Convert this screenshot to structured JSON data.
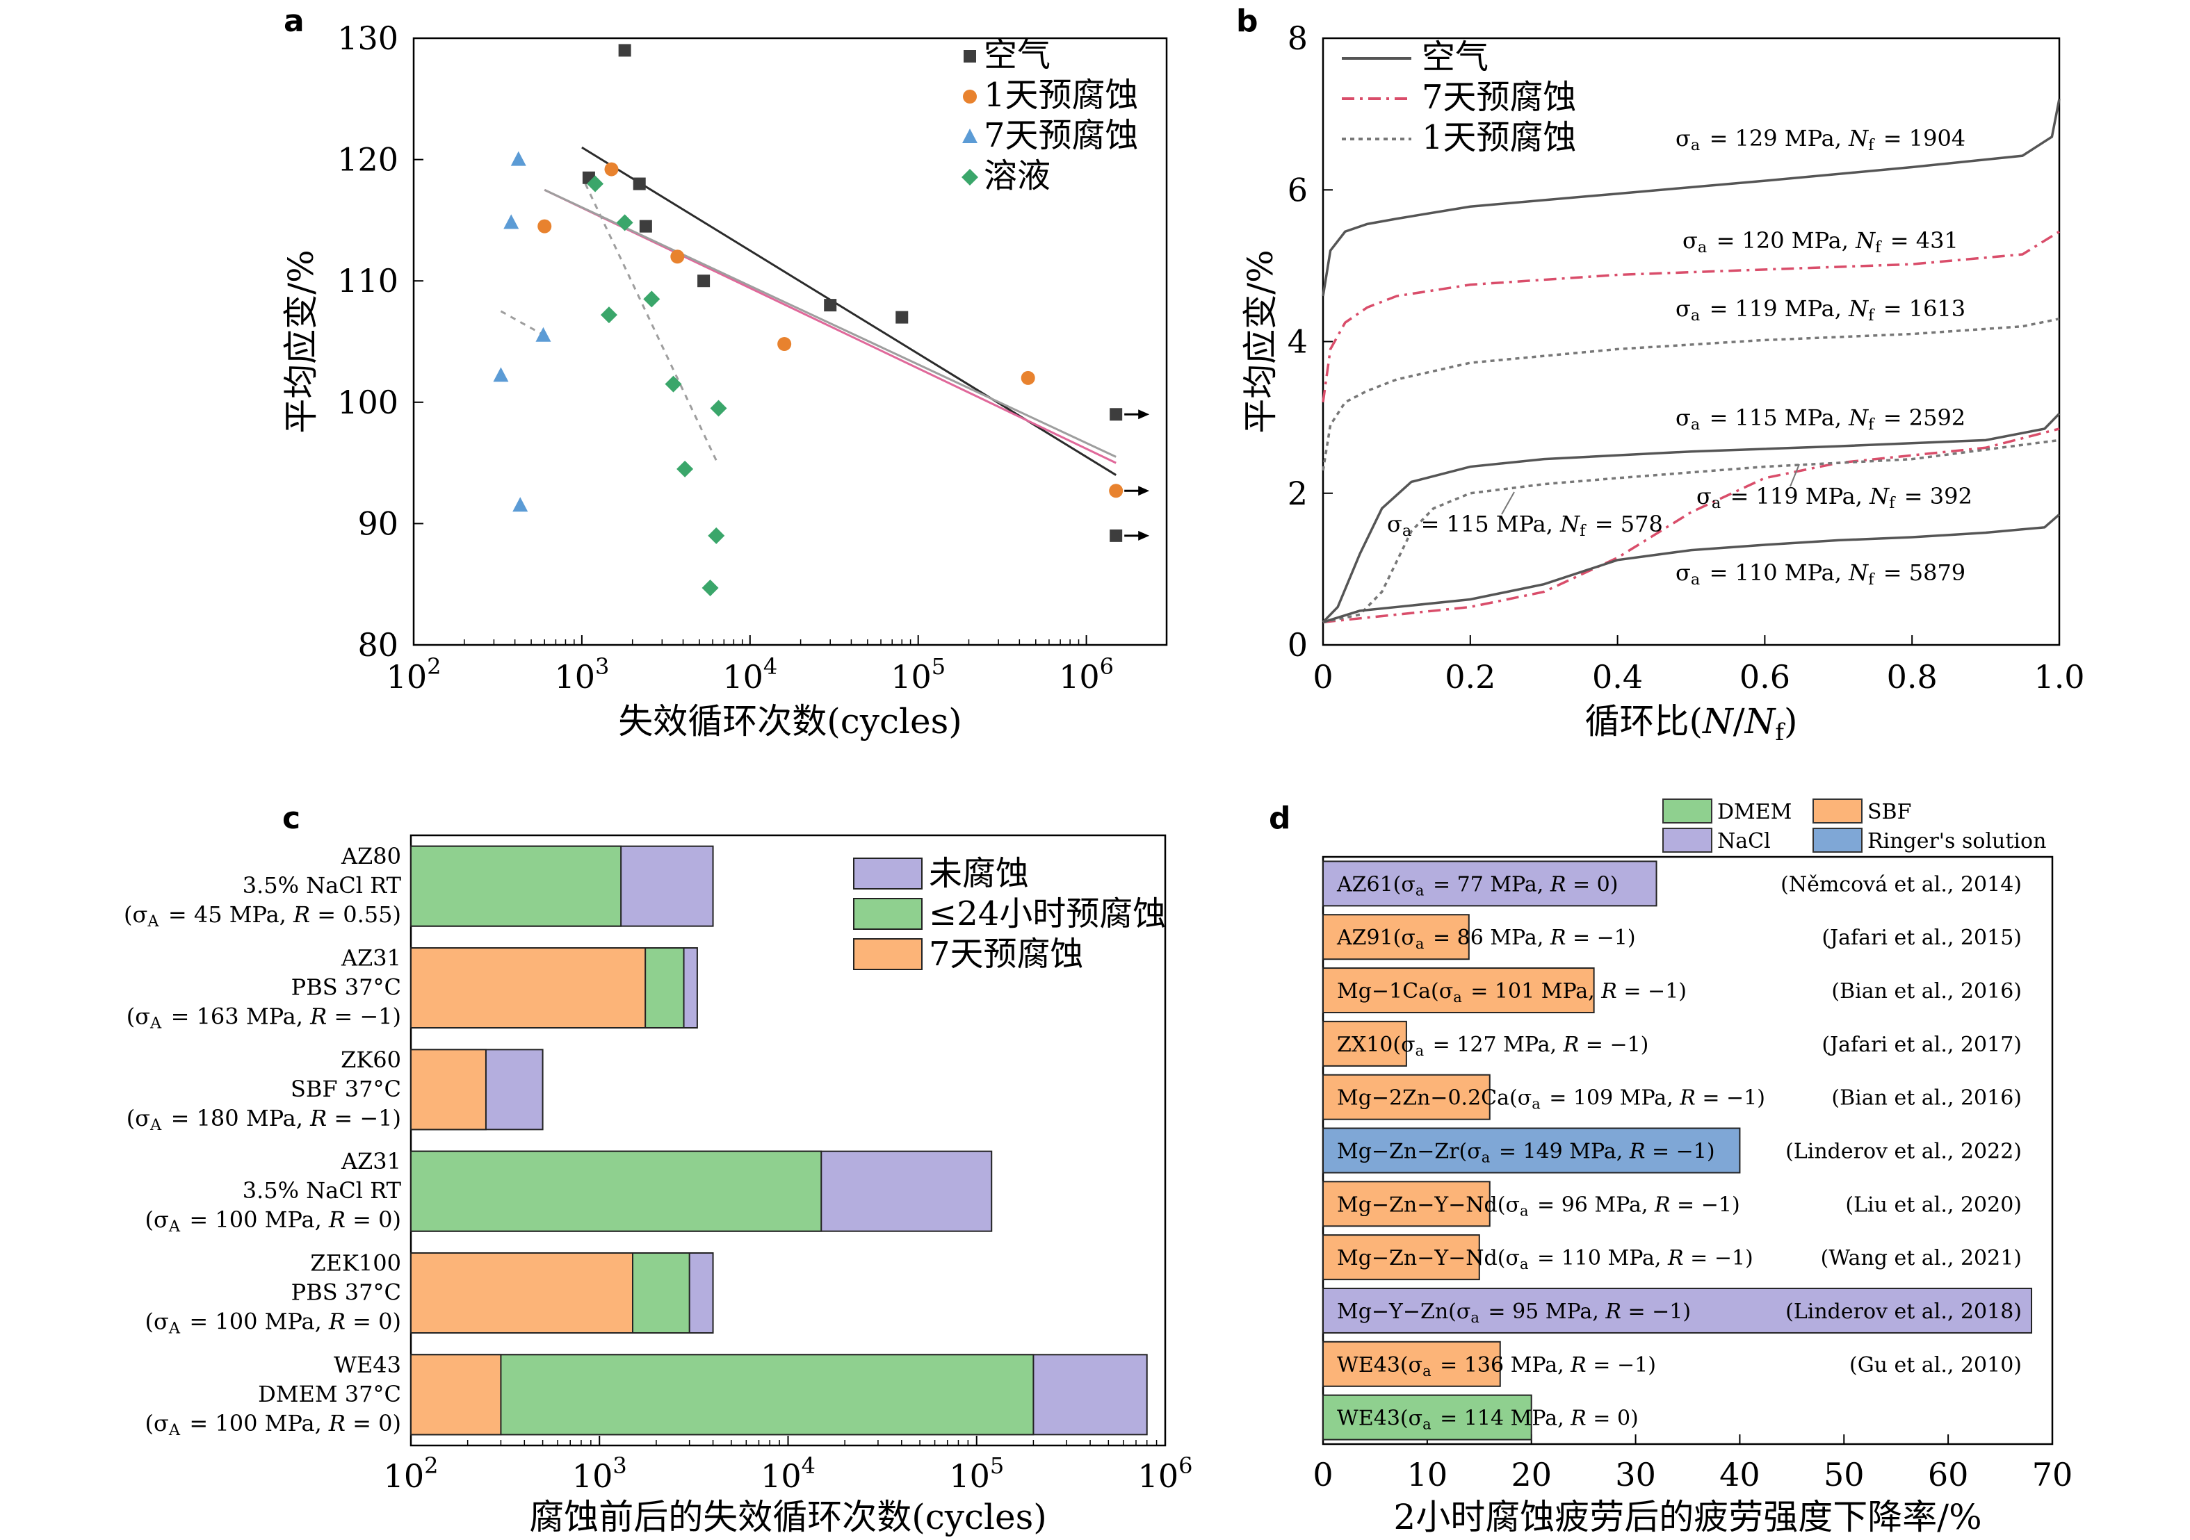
{
  "panels": {
    "a": "a",
    "b": "b",
    "c": "c",
    "d": "d"
  },
  "chart_data": [
    {
      "panel": "a",
      "type": "scatter",
      "xscale": "log",
      "xlabel": "失效循环次数(cycles)",
      "ylabel": "平均应变/%",
      "xlim": [
        100,
        3000000
      ],
      "ylim": [
        80,
        130
      ],
      "xticks": [
        100,
        1000,
        10000,
        100000,
        1000000
      ],
      "xtick_labels": [
        [
          "10",
          "2"
        ],
        [
          "10",
          "3"
        ],
        [
          "10",
          "4"
        ],
        [
          "10",
          "5"
        ],
        [
          "10",
          "6"
        ]
      ],
      "yticks": [
        80,
        90,
        100,
        110,
        120,
        130
      ],
      "legend_position": "top-right",
      "series": [
        {
          "name": "空气",
          "marker": "square",
          "color": "#3d3d3d",
          "points": [
            [
              1800,
              129
            ],
            [
              1100,
              118.5
            ],
            [
              2200,
              118
            ],
            [
              2400,
              114.5
            ],
            [
              5300,
              110
            ],
            [
              30000,
              108
            ],
            [
              80000,
              107
            ]
          ],
          "runouts": [
            [
              1500000,
              99
            ],
            [
              1500000,
              89
            ]
          ]
        },
        {
          "name": "1天预腐蚀",
          "marker": "circle",
          "color": "#e8822e",
          "points": [
            [
              600,
              114.5
            ],
            [
              1500,
              119.2
            ],
            [
              3700,
              112
            ],
            [
              16000,
              104.8
            ],
            [
              450000,
              102
            ]
          ],
          "runouts": [
            [
              1500000,
              92.7
            ]
          ]
        },
        {
          "name": "7天预腐蚀",
          "marker": "triangle",
          "color": "#5b9bd5",
          "points": [
            [
              420,
              120
            ],
            [
              380,
              114.8
            ],
            [
              590,
              105.5
            ],
            [
              330,
              102.2
            ],
            [
              430,
              91.5
            ]
          ],
          "runouts": []
        },
        {
          "name": "溶液",
          "marker": "diamond",
          "color": "#3aa66a",
          "points": [
            [
              1200,
              118
            ],
            [
              1800,
              114.8
            ],
            [
              1450,
              107.2
            ],
            [
              2600,
              108.5
            ],
            [
              3500,
              101.5
            ],
            [
              6500,
              99.5
            ],
            [
              4100,
              94.5
            ],
            [
              6300,
              89
            ],
            [
              5800,
              84.7
            ]
          ],
          "runouts": []
        }
      ],
      "fits": [
        {
          "color": "#2b2b2b",
          "dash": "",
          "from": [
            1000,
            121
          ],
          "to": [
            1500000,
            94
          ]
        },
        {
          "color": "#e0689a",
          "dash": "",
          "from": [
            600,
            117.5
          ],
          "to": [
            1500000,
            95
          ]
        },
        {
          "color": "#9e9e9e",
          "dash": "",
          "from": [
            600,
            117.5
          ],
          "to": [
            1500000,
            95.5
          ]
        },
        {
          "color": "#9e9e9e",
          "dash": "8,8",
          "from": [
            1050,
            118
          ],
          "to": [
            6400,
            95
          ]
        },
        {
          "color": "#9e9e9e",
          "dash": "8,8",
          "from": [
            330,
            107.5
          ],
          "to": [
            600,
            105.5
          ]
        }
      ]
    },
    {
      "panel": "b",
      "type": "line",
      "xlabel": "循环比(N/N_f)",
      "xlabel_parts": [
        "循环比(",
        "N",
        "/",
        "N",
        "f",
        ")"
      ],
      "ylabel": "平均应变/%",
      "xlim": [
        0,
        1.0
      ],
      "ylim": [
        0,
        8
      ],
      "xticks": [
        0,
        0.2,
        0.4,
        0.6,
        0.8,
        1.0
      ],
      "xtick_labels": [
        "0",
        "0.2",
        "0.4",
        "0.6",
        "0.8",
        "1.0"
      ],
      "yticks": [
        0,
        2,
        4,
        6,
        8
      ],
      "legend_position": "top-left",
      "legend": [
        {
          "name": "空气",
          "color": "#555555",
          "dash": ""
        },
        {
          "name": "7天预腐蚀",
          "color": "#d94d6a",
          "dash": "18,8,4,8"
        },
        {
          "name": "1天预腐蚀",
          "color": "#777777",
          "dash": "6,6"
        }
      ],
      "series": [
        {
          "style": "air",
          "label": "σa = 129 MPa, Nf = 1904",
          "x": [
            0,
            0.01,
            0.03,
            0.06,
            0.1,
            0.2,
            0.4,
            0.6,
            0.8,
            0.95,
            0.99,
            1.0
          ],
          "y": [
            4.6,
            5.2,
            5.45,
            5.55,
            5.62,
            5.78,
            5.95,
            6.12,
            6.3,
            6.45,
            6.7,
            7.2
          ]
        },
        {
          "style": "7d",
          "label": "σa = 120 MPa, Nf = 431",
          "x": [
            0,
            0.01,
            0.03,
            0.06,
            0.1,
            0.2,
            0.4,
            0.6,
            0.8,
            0.95,
            1.0
          ],
          "y": [
            3.2,
            3.9,
            4.25,
            4.45,
            4.6,
            4.75,
            4.88,
            4.95,
            5.02,
            5.15,
            5.45
          ]
        },
        {
          "style": "1d",
          "label": "σa = 119 MPa, Nf = 1613",
          "x": [
            0,
            0.01,
            0.03,
            0.06,
            0.1,
            0.2,
            0.4,
            0.6,
            0.8,
            0.95,
            1.0
          ],
          "y": [
            2.3,
            2.9,
            3.2,
            3.35,
            3.5,
            3.72,
            3.9,
            4.02,
            4.1,
            4.2,
            4.3
          ]
        },
        {
          "style": "air",
          "label": "σa = 115 MPa, Nf = 2592",
          "x": [
            0,
            0.02,
            0.05,
            0.08,
            0.12,
            0.2,
            0.3,
            0.5,
            0.7,
            0.9,
            0.98,
            1.0
          ],
          "y": [
            0.3,
            0.5,
            1.2,
            1.8,
            2.15,
            2.35,
            2.45,
            2.55,
            2.62,
            2.7,
            2.85,
            3.05
          ]
        },
        {
          "style": "7d",
          "label": "σa = 119 MPa, Nf = 392",
          "x": [
            0,
            0.05,
            0.1,
            0.2,
            0.3,
            0.4,
            0.5,
            0.6,
            0.7,
            0.8,
            0.9,
            1.0
          ],
          "y": [
            0.3,
            0.35,
            0.4,
            0.5,
            0.7,
            1.15,
            1.75,
            2.2,
            2.4,
            2.5,
            2.6,
            2.85
          ]
        },
        {
          "style": "1d",
          "label": "σa = 115 MPa, Nf = 578",
          "x": [
            0,
            0.05,
            0.08,
            0.1,
            0.12,
            0.15,
            0.2,
            0.3,
            0.4,
            0.6,
            0.8,
            1.0
          ],
          "y": [
            0.3,
            0.4,
            0.7,
            1.1,
            1.5,
            1.8,
            2.0,
            2.12,
            2.2,
            2.35,
            2.45,
            2.7
          ]
        },
        {
          "style": "air",
          "label": "σa = 110 MPa, Nf = 5879",
          "x": [
            0,
            0.05,
            0.1,
            0.2,
            0.3,
            0.4,
            0.5,
            0.6,
            0.7,
            0.8,
            0.9,
            0.98,
            1.0
          ],
          "y": [
            0.3,
            0.45,
            0.5,
            0.6,
            0.8,
            1.12,
            1.25,
            1.32,
            1.38,
            1.42,
            1.48,
            1.55,
            1.72
          ]
        }
      ],
      "annotations": [
        {
          "text": "σa = 129 MPa, Nf = 1904"
        },
        {
          "text": "σa = 120 MPa, Nf = 431"
        },
        {
          "text": "σa = 119 MPa, Nf = 1613"
        },
        {
          "text": "σa = 115 MPa, Nf = 2592"
        },
        {
          "text": "σa = 119 MPa, Nf = 392"
        },
        {
          "text": "σa = 115 MPa, Nf = 578"
        },
        {
          "text": "σa = 110 MPa, Nf = 5879"
        }
      ]
    },
    {
      "panel": "c",
      "type": "bar",
      "orientation": "horizontal",
      "xscale": "log",
      "xlabel": "腐蚀前后的失效循环次数(cycles)",
      "xlim": [
        100,
        1000000
      ],
      "xticks": [
        100,
        1000,
        10000,
        100000,
        1000000
      ],
      "xtick_labels": [
        [
          "10",
          "2"
        ],
        [
          "10",
          "3"
        ],
        [
          "10",
          "4"
        ],
        [
          "10",
          "5"
        ],
        [
          "10",
          "6"
        ]
      ],
      "legend_position": "top-right",
      "legend": [
        {
          "name": "未腐蚀",
          "color": "#b4aede"
        },
        {
          "name": "≤24小时预腐蚀",
          "color": "#8fd08f"
        },
        {
          "name": "7天预腐蚀",
          "color": "#fcb478"
        }
      ],
      "categories": [
        {
          "lines": [
            "AZ80",
            "3.5% NaCl RT",
            "(σA = 45 MPa, R = 0.55)"
          ],
          "uncorroded": 4000,
          "short": 1300,
          "seven_day": null
        },
        {
          "lines": [
            "AZ31",
            "PBS 37°C",
            "(σA = 163 MPa, R = −1)"
          ],
          "uncorroded": 3300,
          "short": 2800,
          "seven_day": 1750
        },
        {
          "lines": [
            "ZK60",
            "SBF 37°C",
            "(σA = 180 MPa, R = −1)"
          ],
          "uncorroded": 500,
          "short": null,
          "seven_day": 250
        },
        {
          "lines": [
            "AZ31",
            "3.5% NaCl RT",
            "(σA = 100 MPa, R = 0)"
          ],
          "uncorroded": 120000,
          "short": 15000,
          "seven_day": null
        },
        {
          "lines": [
            "ZEK100",
            "PBS 37°C",
            "(σA = 100 MPa, R = 0)"
          ],
          "uncorroded": 4000,
          "short": 3000,
          "seven_day": 1500
        },
        {
          "lines": [
            "WE43",
            "DMEM 37°C",
            "(σA = 100 MPa, R = 0)"
          ],
          "uncorroded": 800000,
          "short": 200000,
          "seven_day": 300
        }
      ]
    },
    {
      "panel": "d",
      "type": "bar",
      "orientation": "horizontal",
      "xlabel": "2小时腐蚀疲劳后的疲劳强度下降率/%",
      "xlim": [
        0,
        70
      ],
      "xticks": [
        0,
        10,
        20,
        30,
        40,
        50,
        60,
        70
      ],
      "legend_position": "top",
      "legend": [
        {
          "name": "DMEM",
          "color": "#8fd08f"
        },
        {
          "name": "SBF",
          "color": "#fcb478"
        },
        {
          "name": "NaCl",
          "color": "#b4aede"
        },
        {
          "name": "Ringer's solution",
          "color": "#7fa7d6"
        }
      ],
      "bars": [
        {
          "label": "AZ61(σa = 77 MPa, R = 0)",
          "ref": "(Němcová et al., 2014)",
          "value": 32,
          "medium": "NaCl"
        },
        {
          "label": "AZ91(σa = 86 MPa, R = −1)",
          "ref": "(Jafari et al., 2015)",
          "value": 14,
          "medium": "SBF"
        },
        {
          "label": "Mg−1Ca(σa = 101 MPa, R = −1)",
          "ref": "(Bian et al., 2016)",
          "value": 26,
          "medium": "SBF"
        },
        {
          "label": "ZX10(σa = 127 MPa, R = −1)",
          "ref": "(Jafari et al., 2017)",
          "value": 8,
          "medium": "SBF"
        },
        {
          "label": "Mg−2Zn−0.2Ca(σa = 109 MPa, R = −1)",
          "ref": "(Bian et al., 2016)",
          "value": 16,
          "medium": "SBF"
        },
        {
          "label": "Mg−Zn−Zr(σa = 149 MPa, R = −1)",
          "ref": "(Linderov et al., 2022)",
          "value": 40,
          "medium": "Ringer's solution"
        },
        {
          "label": "Mg−Zn−Y−Nd(σa = 96 MPa, R = −1)",
          "ref": "(Liu et al., 2020)",
          "value": 16,
          "medium": "SBF"
        },
        {
          "label": "Mg−Zn−Y−Nd(σa = 110 MPa, R = −1)",
          "ref": "(Wang et al., 2021)",
          "value": 15,
          "medium": "SBF"
        },
        {
          "label": "Mg−Y−Zn(σa = 95 MPa, R = −1)",
          "ref": "(Linderov et al., 2018)",
          "value": 68,
          "medium": "NaCl"
        },
        {
          "label": "WE43(σa = 136 MPa, R = −1)",
          "ref": "(Gu et al., 2010)",
          "value": 17,
          "medium": "SBF"
        },
        {
          "label": "WE43(σa = 114 MPa, R = 0)",
          "ref": "",
          "value": 20,
          "medium": "DMEM"
        }
      ]
    }
  ]
}
